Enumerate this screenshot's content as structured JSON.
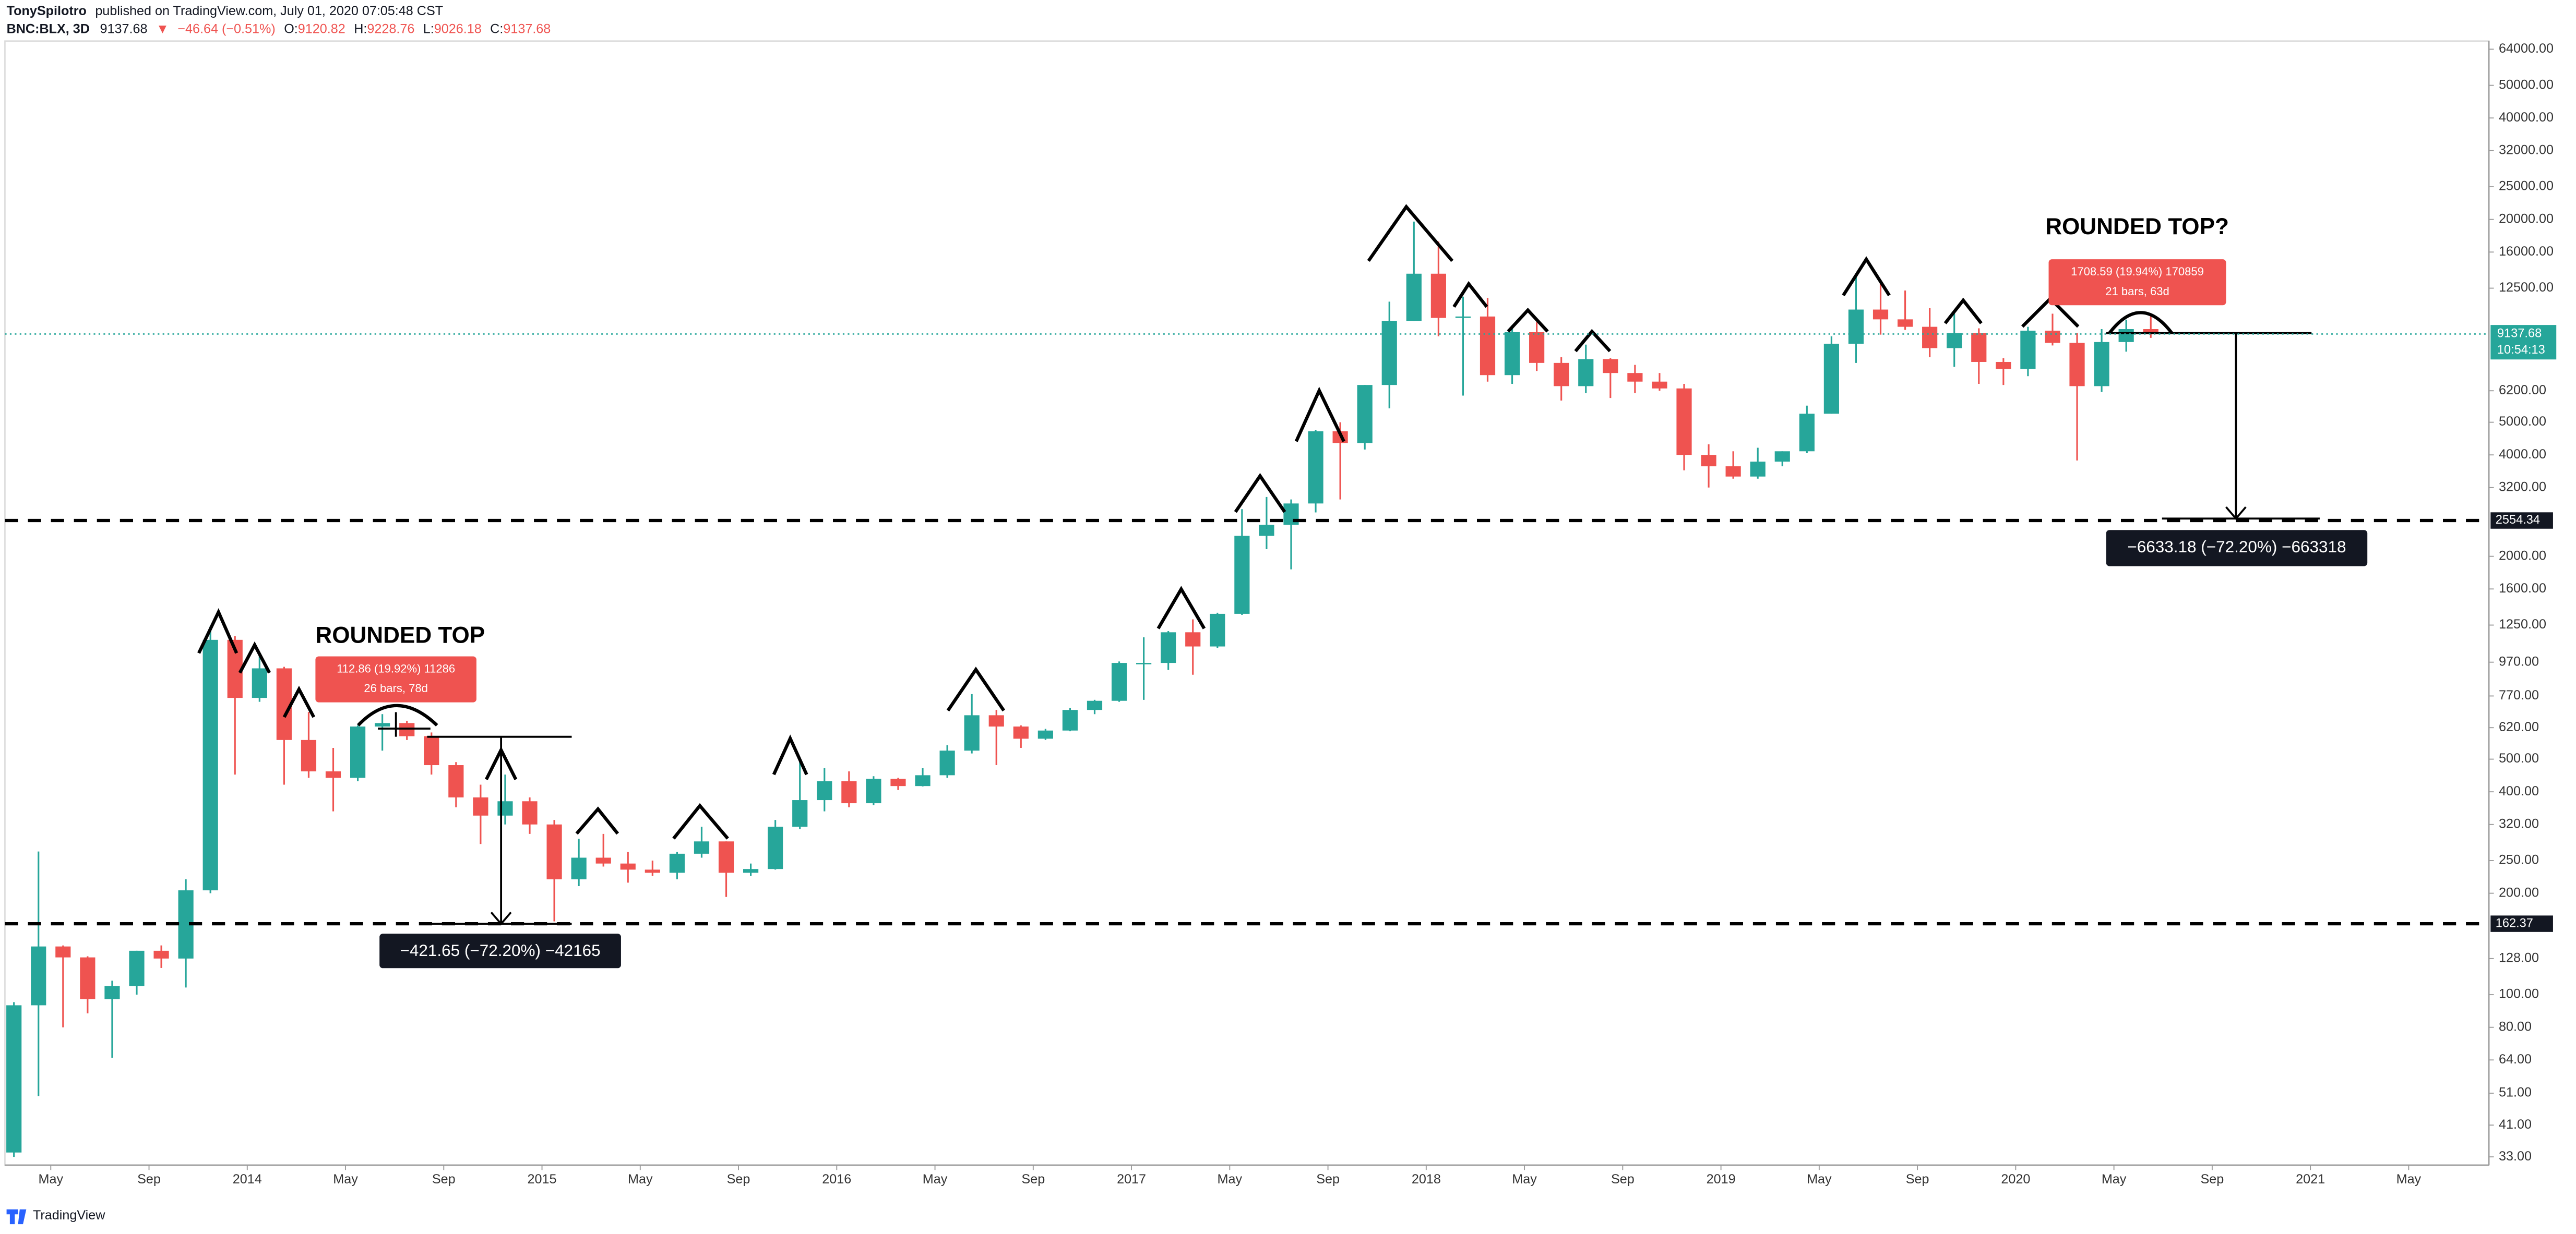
{
  "header": {
    "author": "TonySpilotro",
    "published": "published on TradingView.com, July 01, 2020 07:05:48 CST",
    "symbol": "BNC:BLX, 3D",
    "price": "9137.68",
    "change_arrow": "▼",
    "change": "−46.64 (−0.51%)",
    "ohlc": [
      {
        "label": "O:",
        "value": "9120.82"
      },
      {
        "label": "H:",
        "value": "9228.76"
      },
      {
        "label": "L:",
        "value": "9026.18"
      },
      {
        "label": "C:",
        "value": "9137.68"
      }
    ]
  },
  "chart_data": {
    "type": "candlestick",
    "log_scale": true,
    "grid": false,
    "up_color": "#26a69a",
    "down_color": "#ef5350",
    "x": [
      "2013-03",
      "2013-04",
      "2013-05",
      "2013-06",
      "2013-07",
      "2013-08",
      "2013-09",
      "2013-10",
      "2013-11",
      "2013-12",
      "2014-01",
      "2014-02",
      "2014-03",
      "2014-04",
      "2014-05",
      "2014-06",
      "2014-07",
      "2014-08",
      "2014-09",
      "2014-10",
      "2014-11",
      "2014-12",
      "2015-01",
      "2015-02",
      "2015-03",
      "2015-04",
      "2015-05",
      "2015-06",
      "2015-07",
      "2015-08",
      "2015-09",
      "2015-10",
      "2015-11",
      "2015-12",
      "2016-01",
      "2016-02",
      "2016-03",
      "2016-04",
      "2016-05",
      "2016-06",
      "2016-07",
      "2016-08",
      "2016-09",
      "2016-10",
      "2016-11",
      "2016-12",
      "2017-01",
      "2017-02",
      "2017-03",
      "2017-04",
      "2017-05",
      "2017-06",
      "2017-07",
      "2017-08",
      "2017-09",
      "2017-10",
      "2017-11",
      "2017-12",
      "2018-01",
      "2018-02",
      "2018-03",
      "2018-04",
      "2018-05",
      "2018-06",
      "2018-07",
      "2018-08",
      "2018-09",
      "2018-10",
      "2018-11",
      "2018-12",
      "2019-01",
      "2019-02",
      "2019-03",
      "2019-04",
      "2019-05",
      "2019-06",
      "2019-07",
      "2019-08",
      "2019-09",
      "2019-10",
      "2019-11",
      "2019-12",
      "2020-01",
      "2020-02",
      "2020-03",
      "2020-04",
      "2020-05",
      "2020-06"
    ],
    "open": [
      34,
      93,
      139,
      129,
      97,
      106,
      135,
      128,
      204,
      1130,
      760,
      930,
      570,
      460,
      440,
      625,
      640,
      585,
      480,
      385,
      340,
      375,
      320,
      220,
      255,
      245,
      235,
      230,
      262,
      285,
      230,
      236,
      315,
      378,
      430,
      370,
      437,
      416,
      448,
      530,
      675,
      625,
      575,
      608,
      700,
      745,
      965,
      965,
      1190,
      1080,
      1350,
      2300,
      2480,
      2870,
      4700,
      4340,
      6450,
      10000,
      13800,
      10200,
      10300,
      6900,
      9250,
      7500,
      6400,
      7700,
      7000,
      6600,
      6300,
      4000,
      3700,
      3450,
      3820,
      4100,
      5300,
      8550,
      10800,
      10100,
      9600,
      8300,
      9200,
      7550,
      7200,
      9350,
      8600,
      6400,
      8650,
      9450
    ],
    "high": [
      95,
      266,
      140,
      130,
      110,
      135,
      140,
      220,
      1240,
      1160,
      1020,
      940,
      690,
      540,
      630,
      680,
      650,
      600,
      490,
      420,
      450,
      385,
      330,
      290,
      300,
      265,
      250,
      265,
      315,
      285,
      245,
      330,
      500,
      470,
      460,
      445,
      440,
      470,
      550,
      780,
      700,
      630,
      615,
      710,
      750,
      975,
      1150,
      1200,
      1300,
      1360,
      2760,
      3000,
      2950,
      4750,
      5000,
      6450,
      11400,
      19700,
      17200,
      11800,
      11700,
      9700,
      9900,
      7800,
      8500,
      7750,
      7400,
      7000,
      6500,
      4300,
      4100,
      4200,
      4100,
      5600,
      9000,
      13800,
      13200,
      12300,
      10900,
      10500,
      9500,
      7750,
      9600,
      10500,
      9200,
      9450,
      10080,
      10400
    ],
    "low": [
      33,
      50,
      80,
      88,
      65,
      100,
      120,
      105,
      200,
      450,
      740,
      420,
      440,
      350,
      430,
      530,
      570,
      450,
      360,
      280,
      320,
      300,
      165,
      210,
      240,
      215,
      225,
      220,
      255,
      195,
      225,
      235,
      310,
      350,
      360,
      365,
      405,
      415,
      440,
      520,
      480,
      540,
      570,
      605,
      680,
      740,
      750,
      920,
      890,
      1070,
      1340,
      2100,
      1830,
      2700,
      2950,
      4150,
      5500,
      10000,
      9000,
      6000,
      6600,
      6500,
      7100,
      5800,
      6100,
      5900,
      6100,
      6200,
      3600,
      3200,
      3400,
      3400,
      3700,
      4050,
      5300,
      7500,
      9100,
      9400,
      7800,
      7300,
      6500,
      6450,
      6850,
      8450,
      3850,
      6150,
      8100,
      8900
    ],
    "close": [
      93,
      139,
      129,
      97,
      106,
      135,
      128,
      204,
      1130,
      760,
      930,
      570,
      460,
      440,
      625,
      640,
      585,
      480,
      385,
      340,
      375,
      320,
      220,
      255,
      245,
      235,
      230,
      262,
      285,
      230,
      236,
      315,
      378,
      430,
      370,
      437,
      416,
      448,
      530,
      675,
      625,
      575,
      608,
      700,
      745,
      965,
      965,
      1190,
      1080,
      1350,
      2300,
      2480,
      2870,
      4700,
      4340,
      6450,
      10000,
      13800,
      10200,
      10300,
      6900,
      9250,
      7500,
      6400,
      7700,
      7000,
      6600,
      6300,
      4000,
      3700,
      3450,
      3820,
      4100,
      5300,
      8550,
      10800,
      10100,
      9600,
      8300,
      9200,
      7550,
      7200,
      9350,
      8600,
      6400,
      8650,
      9450,
      9137.68
    ],
    "xlim": [
      "2013-03",
      "2021-08"
    ],
    "xticks": [
      {
        "value": "2013-05",
        "label": "May"
      },
      {
        "value": "2013-09",
        "label": "Sep"
      },
      {
        "value": "2014-01",
        "label": "2014"
      },
      {
        "value": "2014-05",
        "label": "May"
      },
      {
        "value": "2014-09",
        "label": "Sep"
      },
      {
        "value": "2015-01",
        "label": "2015"
      },
      {
        "value": "2015-05",
        "label": "May"
      },
      {
        "value": "2015-09",
        "label": "Sep"
      },
      {
        "value": "2016-01",
        "label": "2016"
      },
      {
        "value": "2016-05",
        "label": "May"
      },
      {
        "value": "2016-09",
        "label": "Sep"
      },
      {
        "value": "2017-01",
        "label": "2017"
      },
      {
        "value": "2017-05",
        "label": "May"
      },
      {
        "value": "2017-09",
        "label": "Sep"
      },
      {
        "value": "2018-01",
        "label": "2018"
      },
      {
        "value": "2018-05",
        "label": "May"
      },
      {
        "value": "2018-09",
        "label": "Sep"
      },
      {
        "value": "2019-01",
        "label": "2019"
      },
      {
        "value": "2019-05",
        "label": "May"
      },
      {
        "value": "2019-09",
        "label": "Sep"
      },
      {
        "value": "2020-01",
        "label": "2020"
      },
      {
        "value": "2020-05",
        "label": "May"
      },
      {
        "value": "2020-09",
        "label": "Sep"
      },
      {
        "value": "2021-01",
        "label": "2021"
      },
      {
        "value": "2021-05",
        "label": "May"
      }
    ],
    "ylim": [
      31.2,
      70000
    ],
    "yticks": [
      {
        "value": 64000,
        "label": "64000.00"
      },
      {
        "value": 50000,
        "label": "50000.00"
      },
      {
        "value": 40000,
        "label": "40000.00"
      },
      {
        "value": 32000,
        "label": "32000.00"
      },
      {
        "value": 25000,
        "label": "25000.00"
      },
      {
        "value": 20000,
        "label": "20000.00"
      },
      {
        "value": 16000,
        "label": "16000.00"
      },
      {
        "value": 12500,
        "label": "12500.00"
      },
      {
        "value": 6200,
        "label": "6200.00"
      },
      {
        "value": 5000,
        "label": "5000.00"
      },
      {
        "value": 4000,
        "label": "4000.00"
      },
      {
        "value": 3200,
        "label": "3200.00"
      },
      {
        "value": 2000,
        "label": "2000.00"
      },
      {
        "value": 1600,
        "label": "1600.00"
      },
      {
        "value": 1250,
        "label": "1250.00"
      },
      {
        "value": 970,
        "label": "970.00"
      },
      {
        "value": 770,
        "label": "770.00"
      },
      {
        "value": 620,
        "label": "620.00"
      },
      {
        "value": 500,
        "label": "500.00"
      },
      {
        "value": 400,
        "label": "400.00"
      },
      {
        "value": 320,
        "label": "320.00"
      },
      {
        "value": 250,
        "label": "250.00"
      },
      {
        "value": 200,
        "label": "200.00"
      },
      {
        "value": 128,
        "label": "128.00"
      },
      {
        "value": 100,
        "label": "100.00"
      },
      {
        "value": 80,
        "label": "80.00"
      },
      {
        "value": 64,
        "label": "64.00"
      },
      {
        "value": 51,
        "label": "51.00"
      },
      {
        "value": 41,
        "label": "41.00"
      },
      {
        "value": 33,
        "label": "33.00"
      }
    ],
    "levels": [
      162.37,
      2554.34
    ],
    "last_price": 9137.68,
    "countdown": "10:54:13",
    "annotations": [
      "ROUNDED TOP",
      "ROUNDED TOP?"
    ],
    "measures": [
      {
        "line1": "112.86 (19.92%) 11286",
        "line2": "26 bars, 78d"
      },
      {
        "line1": "1708.59 (19.94%) 170859",
        "line2": "21 bars, 63d"
      }
    ],
    "drawdowns": [
      "−421.65 (−72.20%) −42165",
      "−6633.18 (−72.20%) −663318"
    ]
  },
  "footer": {
    "brand": "TradingView"
  }
}
